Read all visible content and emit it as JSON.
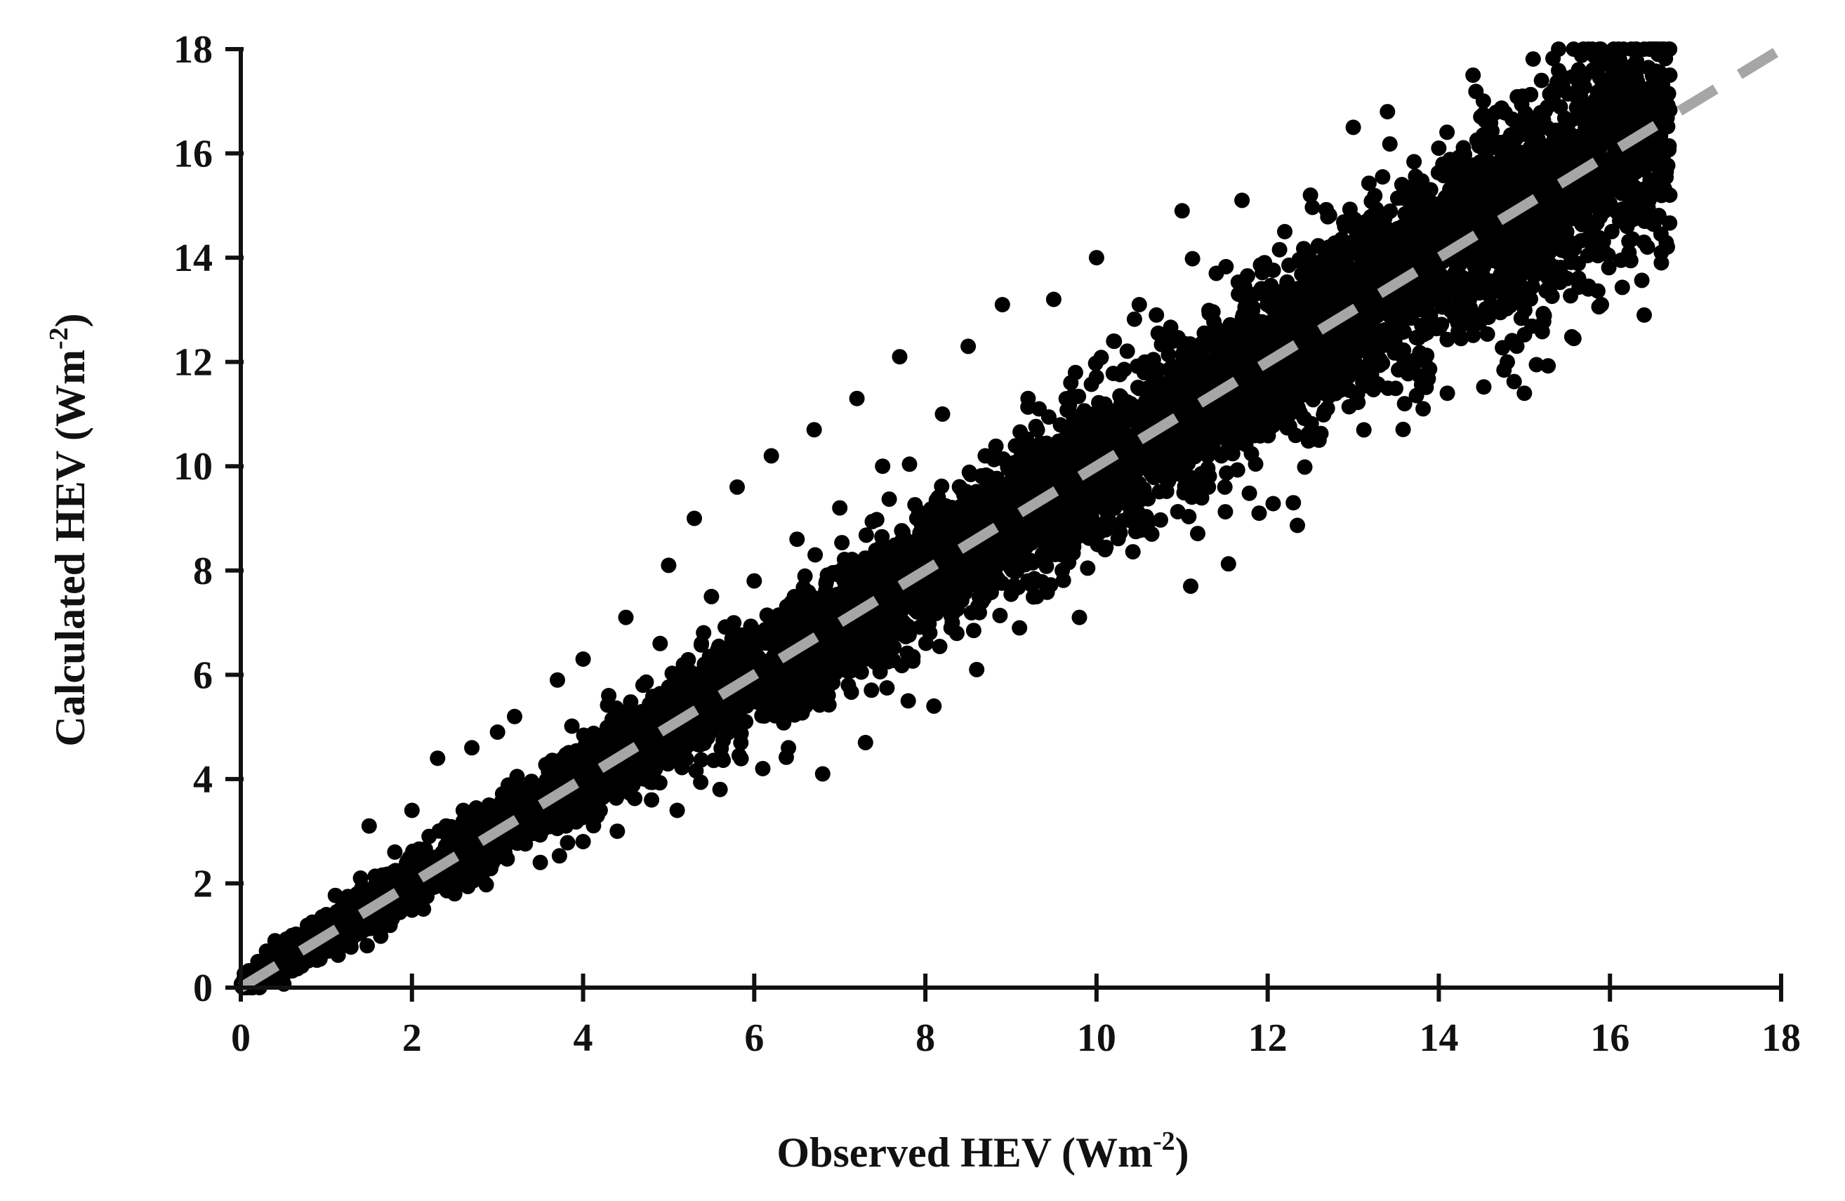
{
  "chart_data": {
    "type": "scatter",
    "xlabel": "Observed HEV (Wm-2)",
    "xlabel_parts": {
      "main": "Observed HEV (Wm",
      "sup": "-2",
      "end": ")"
    },
    "ylabel": "Calculated HEV (Wm-2)",
    "ylabel_parts": {
      "main": "Calculated  HEV (Wm",
      "sup": "-2",
      "end": ")"
    },
    "xlim": [
      0,
      18
    ],
    "ylim": [
      0,
      18
    ],
    "x_ticks": [
      "0",
      "2",
      "4",
      "6",
      "8",
      "10",
      "12",
      "14",
      "16",
      "18"
    ],
    "y_ticks": [
      "0",
      "2",
      "4",
      "6",
      "8",
      "10",
      "12",
      "14",
      "16",
      "18"
    ],
    "grid": false,
    "legend": "none",
    "colors": {
      "points": "#000000",
      "reference_line": "#a6a6a6",
      "axes": "#111111"
    },
    "reference_line": {
      "style": "dashed",
      "x": [
        0,
        18
      ],
      "y": [
        0,
        18
      ]
    },
    "series": [
      {
        "points_described": "dense cloud of observations scattered around the 1:1 line, observed range 0 to 16.7",
        "sample_points": [
          [
            0.1,
            0.2
          ],
          [
            0.2,
            0.5
          ],
          [
            0.3,
            0.7
          ],
          [
            0.4,
            0.9
          ],
          [
            0.5,
            0.6
          ],
          [
            0.6,
            1.0
          ],
          [
            0.7,
            0.5
          ],
          [
            0.8,
            1.1
          ],
          [
            0.9,
            0.8
          ],
          [
            1.0,
            1.4
          ],
          [
            1.1,
            0.9
          ],
          [
            1.2,
            1.7
          ],
          [
            1.3,
            1.2
          ],
          [
            1.4,
            2.1
          ],
          [
            1.5,
            1.3
          ],
          [
            1.5,
            3.1
          ],
          [
            1.6,
            1.9
          ],
          [
            1.7,
            1.4
          ],
          [
            1.8,
            2.6
          ],
          [
            1.9,
            1.6
          ],
          [
            2.0,
            2.4
          ],
          [
            2.0,
            3.4
          ],
          [
            2.1,
            1.7
          ],
          [
            2.2,
            2.9
          ],
          [
            2.3,
            2.0
          ],
          [
            2.3,
            4.4
          ],
          [
            2.4,
            3.1
          ],
          [
            2.5,
            1.8
          ],
          [
            2.6,
            3.4
          ],
          [
            2.7,
            4.6
          ],
          [
            2.8,
            2.4
          ],
          [
            2.9,
            3.5
          ],
          [
            3.0,
            2.5
          ],
          [
            3.0,
            4.9
          ],
          [
            3.1,
            3.2
          ],
          [
            3.2,
            5.2
          ],
          [
            3.3,
            2.8
          ],
          [
            3.4,
            3.9
          ],
          [
            3.5,
            2.4
          ],
          [
            3.6,
            4.3
          ],
          [
            3.7,
            5.9
          ],
          [
            3.8,
            3.1
          ],
          [
            3.9,
            4.5
          ],
          [
            4.0,
            2.8
          ],
          [
            4.0,
            6.3
          ],
          [
            4.1,
            4.8
          ],
          [
            4.2,
            3.4
          ],
          [
            4.3,
            5.6
          ],
          [
            4.4,
            3.0
          ],
          [
            4.5,
            7.1
          ],
          [
            4.6,
            4.2
          ],
          [
            4.7,
            5.8
          ],
          [
            4.8,
            3.6
          ],
          [
            4.9,
            6.6
          ],
          [
            5.0,
            4.5
          ],
          [
            5.0,
            8.1
          ],
          [
            5.1,
            3.4
          ],
          [
            5.2,
            6.1
          ],
          [
            5.3,
            9.0
          ],
          [
            5.4,
            4.9
          ],
          [
            5.5,
            7.5
          ],
          [
            5.6,
            3.8
          ],
          [
            5.7,
            6.4
          ],
          [
            5.8,
            9.6
          ],
          [
            5.9,
            5.1
          ],
          [
            6.0,
            7.8
          ],
          [
            6.1,
            4.2
          ],
          [
            6.2,
            10.2
          ],
          [
            6.3,
            6.7
          ],
          [
            6.4,
            4.6
          ],
          [
            6.5,
            8.6
          ],
          [
            6.6,
            5.4
          ],
          [
            6.7,
            10.7
          ],
          [
            6.8,
            4.1
          ],
          [
            6.9,
            7.1
          ],
          [
            7.0,
            9.2
          ],
          [
            7.1,
            5.8
          ],
          [
            7.2,
            11.3
          ],
          [
            7.3,
            4.7
          ],
          [
            7.4,
            8.1
          ],
          [
            7.5,
            10.0
          ],
          [
            7.6,
            6.3
          ],
          [
            7.7,
            12.1
          ],
          [
            7.8,
            5.5
          ],
          [
            7.9,
            9.0
          ],
          [
            8.0,
            7.3
          ],
          [
            8.1,
            5.4
          ],
          [
            8.2,
            11.0
          ],
          [
            8.3,
            6.9
          ],
          [
            8.4,
            9.6
          ],
          [
            8.5,
            12.3
          ],
          [
            8.6,
            6.1
          ],
          [
            8.7,
            10.2
          ],
          [
            8.8,
            7.8
          ],
          [
            8.9,
            13.1
          ],
          [
            9.0,
            8.4
          ],
          [
            9.1,
            6.9
          ],
          [
            9.2,
            11.3
          ],
          [
            9.3,
            7.5
          ],
          [
            9.4,
            10.4
          ],
          [
            9.5,
            13.2
          ],
          [
            9.6,
            8.0
          ],
          [
            9.7,
            11.6
          ],
          [
            9.8,
            7.1
          ],
          [
            9.9,
            10.1
          ],
          [
            10.0,
            14.0
          ],
          [
            10.1,
            8.4
          ],
          [
            10.2,
            12.4
          ],
          [
            10.3,
            9.3
          ],
          [
            10.4,
            11.2
          ],
          [
            10.5,
            13.1
          ],
          [
            10.6,
            8.9
          ],
          [
            10.7,
            12.9
          ],
          [
            10.8,
            9.8
          ],
          [
            10.9,
            11.5
          ],
          [
            11.0,
            14.9
          ],
          [
            11.1,
            7.7
          ],
          [
            11.2,
            12.1
          ],
          [
            11.3,
            10.2
          ],
          [
            11.4,
            13.7
          ],
          [
            11.5,
            9.6
          ],
          [
            11.6,
            12.5
          ],
          [
            11.7,
            15.1
          ],
          [
            11.8,
            10.8
          ],
          [
            11.9,
            9.1
          ],
          [
            12.0,
            13.2
          ],
          [
            12.1,
            11.4
          ],
          [
            12.2,
            14.5
          ],
          [
            12.3,
            9.3
          ],
          [
            12.4,
            12.8
          ],
          [
            12.5,
            15.2
          ],
          [
            12.6,
            10.5
          ],
          [
            12.7,
            13.8
          ],
          [
            12.8,
            11.6
          ],
          [
            12.9,
            14.6
          ],
          [
            13.0,
            16.5
          ],
          [
            13.1,
            11.8
          ],
          [
            13.2,
            14.1
          ],
          [
            13.3,
            12.3
          ],
          [
            13.4,
            16.8
          ],
          [
            13.5,
            13.0
          ],
          [
            13.6,
            11.2
          ],
          [
            13.7,
            15.3
          ],
          [
            13.8,
            12.7
          ],
          [
            13.9,
            14.4
          ],
          [
            14.0,
            16.1
          ],
          [
            14.1,
            11.4
          ],
          [
            14.2,
            15.0
          ],
          [
            14.3,
            13.2
          ],
          [
            14.4,
            17.5
          ],
          [
            14.5,
            12.9
          ],
          [
            14.6,
            15.8
          ],
          [
            14.7,
            13.9
          ],
          [
            14.8,
            12.0
          ],
          [
            14.9,
            16.6
          ],
          [
            15.0,
            11.4
          ],
          [
            15.1,
            14.8
          ],
          [
            15.2,
            17.4
          ],
          [
            15.3,
            15.2
          ],
          [
            15.4,
            18.0
          ],
          [
            15.5,
            13.6
          ],
          [
            15.6,
            16.2
          ],
          [
            15.7,
            14.7
          ],
          [
            15.8,
            17.6
          ],
          [
            15.9,
            13.1
          ],
          [
            16.0,
            15.6
          ],
          [
            16.1,
            17.2
          ],
          [
            16.2,
            14.6
          ],
          [
            16.3,
            18.0
          ],
          [
            16.4,
            12.9
          ],
          [
            16.5,
            16.9
          ],
          [
            16.6,
            14.1
          ],
          [
            16.7,
            17.5
          ],
          [
            16.7,
            15.2
          ],
          [
            16.6,
            13.9
          ]
        ]
      }
    ]
  }
}
